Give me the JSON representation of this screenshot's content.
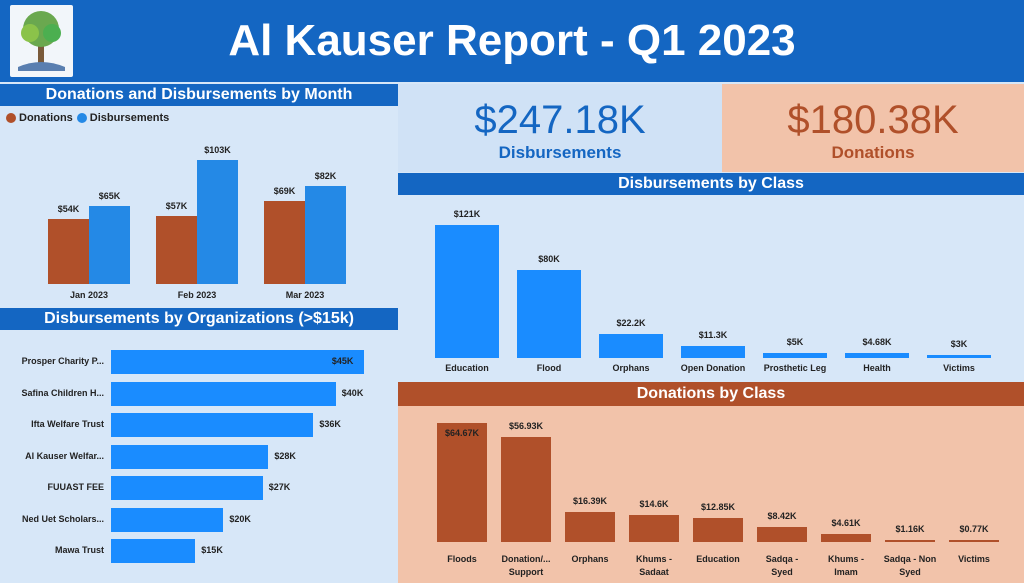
{
  "header": {
    "title": "Al Kauser Report - Q1 2023"
  },
  "colors": {
    "blue": "#1466c2",
    "bar_blue": "#2489e6",
    "org_blue": "#1a8cff",
    "brown": "#b0502a",
    "peach": "#f2c3aa",
    "panel": "#d7e7f8"
  },
  "kpis": {
    "disbursements": {
      "value": "$247.18K",
      "label": "Disbursements"
    },
    "donations": {
      "value": "$180.38K",
      "label": "Donations"
    }
  },
  "monthly": {
    "title": "Donations and Disbursements by Month",
    "legend": [
      "Donations",
      "Disbursements"
    ],
    "chart_data": {
      "type": "bar",
      "categories": [
        "Jan 2023",
        "Feb 2023",
        "Mar 2023"
      ],
      "series": [
        {
          "name": "Donations",
          "values": [
            54,
            57,
            69
          ],
          "labels": [
            "$54K",
            "$57K",
            "$69K"
          ]
        },
        {
          "name": "Disbursements",
          "values": [
            65,
            103,
            82
          ],
          "labels": [
            "$65K",
            "$103K",
            "$82K"
          ]
        }
      ]
    }
  },
  "orgs": {
    "title": "Disbursements by Organizations (>$15k)",
    "chart_data": {
      "type": "bar",
      "orientation": "horizontal",
      "categories": [
        "Prosper Charity P...",
        "Safina Children H...",
        "Ifta Welfare Trust",
        "Al Kauser Welfar...",
        "FUUAST FEE",
        "Ned Uet Scholars...",
        "Mawa Trust"
      ],
      "values": [
        45,
        40,
        36,
        28,
        27,
        20,
        15
      ],
      "labels": [
        "$45K",
        "$40K",
        "$36K",
        "$28K",
        "$27K",
        "$20K",
        "$15K"
      ]
    }
  },
  "disb_class": {
    "title": "Disbursements by Class",
    "chart_data": {
      "type": "bar",
      "categories": [
        "Education",
        "Flood",
        "Orphans",
        "Open Donation",
        "Prosthetic Leg",
        "Health",
        "Victims"
      ],
      "values": [
        121,
        80,
        22.2,
        11.3,
        5,
        4.68,
        3
      ],
      "labels": [
        "$121K",
        "$80K",
        "$22.2K",
        "$11.3K",
        "$5K",
        "$4.68K",
        "$3K"
      ]
    }
  },
  "don_class": {
    "title": "Donations by Class",
    "chart_data": {
      "type": "bar",
      "categories": [
        [
          "Floods"
        ],
        [
          "Donation/...",
          "Support"
        ],
        [
          "Orphans"
        ],
        [
          "Khums -",
          "Sadaat"
        ],
        [
          "Education"
        ],
        [
          "Sadqa -",
          "Syed"
        ],
        [
          "Khums -",
          "Imam"
        ],
        [
          "Sadqa - Non",
          "Syed"
        ],
        [
          "Victims"
        ]
      ],
      "values": [
        64.67,
        56.93,
        16.39,
        14.6,
        12.85,
        8.42,
        4.61,
        1.16,
        0.77
      ],
      "labels": [
        "$64.67K",
        "$56.93K",
        "$16.39K",
        "$14.6K",
        "$12.85K",
        "$8.42K",
        "$4.61K",
        "$1.16K",
        "$0.77K"
      ]
    }
  }
}
